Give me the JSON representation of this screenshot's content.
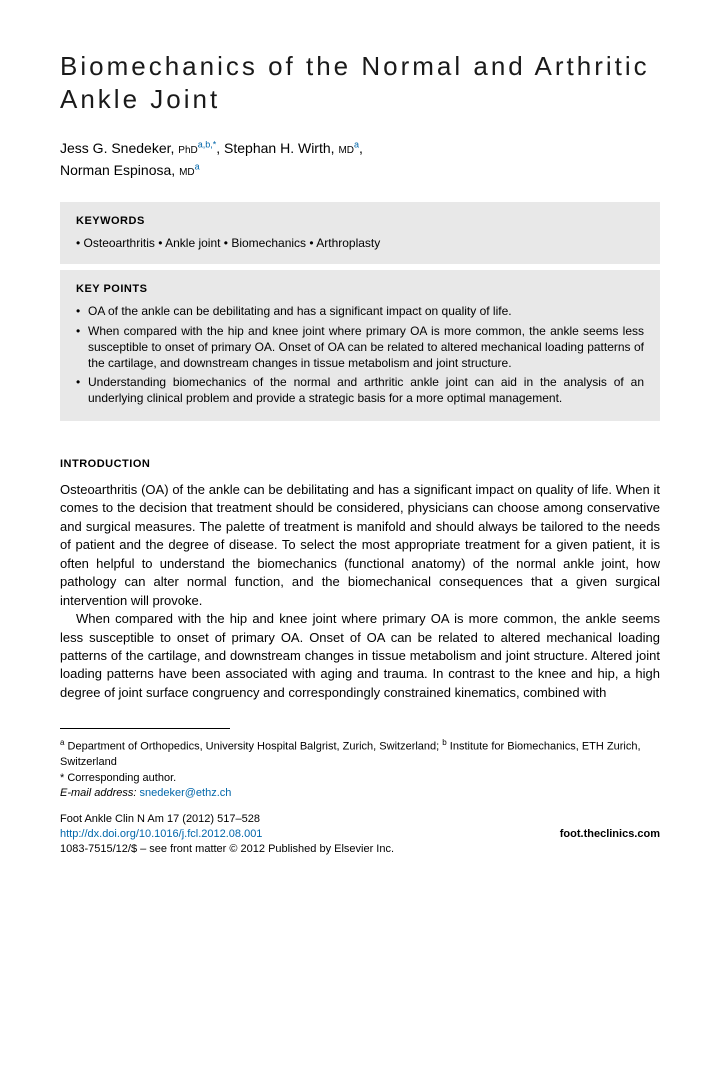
{
  "title": "Biomechanics of the Normal and Arthritic Ankle Joint",
  "authors": {
    "a1_name": "Jess G. Snedeker, ",
    "a1_deg": "PhD",
    "a1_sup": "a,b,*",
    "a2_name": ", Stephan H. Wirth, ",
    "a2_deg": "MD",
    "a2_sup": "a",
    "a3_name": "Norman Espinosa, ",
    "a3_deg": "MD",
    "a3_sup": "a"
  },
  "kw_head": "KEYWORDS",
  "kw_line": "• Osteoarthritis • Ankle joint • Biomechanics • Arthroplasty",
  "kp_head": "KEY POINTS",
  "kp": [
    "OA of the ankle can be debilitating and has a significant impact on quality of life.",
    "When compared with the hip and knee joint where primary OA is more common, the ankle seems less susceptible to onset of primary OA. Onset of OA can be related to altered mechanical loading patterns of the cartilage, and downstream changes in tissue metabolism and joint structure.",
    "Understanding biomechanics of the normal and arthritic ankle joint can aid in the analysis of an underlying clinical problem and provide a strategic basis for a more optimal management."
  ],
  "intro_head": "INTRODUCTION",
  "p1": "Osteoarthritis (OA) of the ankle can be debilitating and has a significant impact on quality of life. When it comes to the decision that treatment should be considered, physicians can choose among conservative and surgical measures. The palette of treatment is manifold and should always be tailored to the needs of patient and the degree of disease. To select the most appropriate treatment for a given patient, it is often helpful to understand the biomechanics (functional anatomy) of the normal ankle joint, how pathology can alter normal function, and the biomechanical consequences that a given surgical intervention will provoke.",
  "p2": "When compared with the hip and knee joint where primary OA is more common, the ankle seems less susceptible to onset of primary OA. Onset of OA can be related to altered mechanical loading patterns of the cartilage, and downstream changes in tissue metabolism and joint structure. Altered joint loading patterns have been associated with aging and trauma. In contrast to the knee and hip, a high degree of joint surface congruency and correspondingly constrained kinematics, combined with",
  "affil": {
    "a_sup": "a",
    "a_txt": " Department of Orthopedics, University Hospital Balgrist, Zurich, Switzerland; ",
    "b_sup": "b",
    "b_txt": " Institute for Biomechanics, ETH Zurich, Switzerland",
    "corr": "* Corresponding author.",
    "email_lbl": "E-mail address: ",
    "email": "snedeker@ethz.ch"
  },
  "pub": {
    "cite": "Foot Ankle Clin N Am 17 (2012) 517–528",
    "doi": "http://dx.doi.org/10.1016/j.fcl.2012.08.001",
    "site": "foot.theclinics.com",
    "copy": "1083-7515/12/$ – see front matter © 2012 Published by Elsevier Inc."
  }
}
